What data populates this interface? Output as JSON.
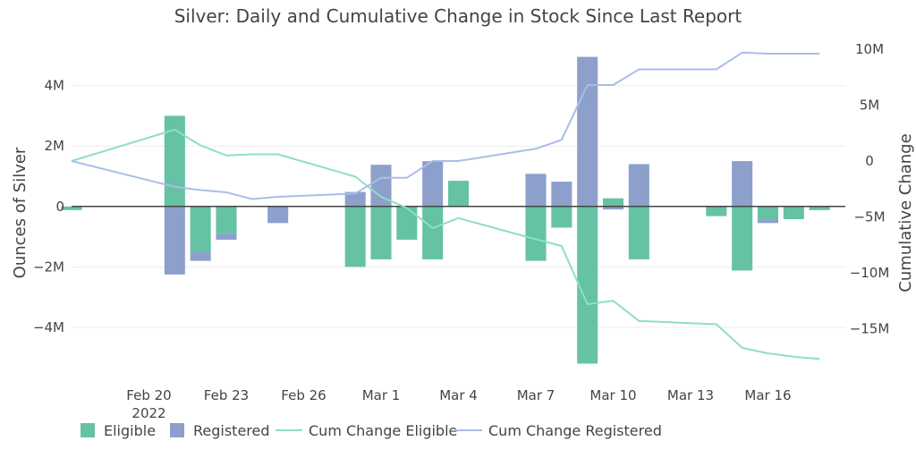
{
  "chart_data": {
    "type": "bar",
    "title": "Silver: Daily and Cumulative Change in Stock Since Last Report",
    "ylabel": "Ounces of Silver",
    "y2label": "Cumulative Change",
    "ylim": [
      -5.6,
      5.5
    ],
    "y2lim": [
      -19.2,
      10.8
    ],
    "y_unit": "M",
    "yticks": [
      {
        "value": 4,
        "label": "4M"
      },
      {
        "value": 2,
        "label": "2M"
      },
      {
        "value": 0,
        "label": "0"
      },
      {
        "value": -2,
        "label": "−2M"
      },
      {
        "value": -4,
        "label": "−4M"
      }
    ],
    "y2ticks": [
      {
        "value": 10,
        "label": "10M"
      },
      {
        "value": 5,
        "label": "5M"
      },
      {
        "value": 0,
        "label": "0"
      },
      {
        "value": -5,
        "label": "−5M"
      },
      {
        "value": -10,
        "label": "−10M"
      },
      {
        "value": -15,
        "label": "−15M"
      }
    ],
    "xlim": [
      "2022-02-17",
      "2022-03-19"
    ],
    "xticks": [
      {
        "date": "2022-02-20",
        "label": "Feb 20",
        "year": "2022"
      },
      {
        "date": "2022-02-23",
        "label": "Feb 23"
      },
      {
        "date": "2022-02-26",
        "label": "Feb 26"
      },
      {
        "date": "2022-03-01",
        "label": "Mar 1"
      },
      {
        "date": "2022-03-04",
        "label": "Mar 4"
      },
      {
        "date": "2022-03-07",
        "label": "Mar 7"
      },
      {
        "date": "2022-03-10",
        "label": "Mar 10"
      },
      {
        "date": "2022-03-13",
        "label": "Mar 13"
      },
      {
        "date": "2022-03-16",
        "label": "Mar 16"
      }
    ],
    "barmode": "relative",
    "dates": [
      "2022-02-17",
      "2022-02-21",
      "2022-02-22",
      "2022-02-23",
      "2022-02-24",
      "2022-02-25",
      "2022-02-28",
      "2022-03-01",
      "2022-03-02",
      "2022-03-03",
      "2022-03-04",
      "2022-03-07",
      "2022-03-08",
      "2022-03-09",
      "2022-03-10",
      "2022-03-11",
      "2022-03-14",
      "2022-03-15",
      "2022-03-16",
      "2022-03-17",
      "2022-03-18"
    ],
    "series": [
      {
        "name": "Eligible",
        "kind": "bar",
        "axis": "y",
        "color": "#66c2a5",
        "values": [
          -0.12,
          3.0,
          -1.5,
          -0.9,
          0,
          0,
          -2.0,
          -1.75,
          -1.1,
          -1.75,
          0.85,
          -1.8,
          -0.7,
          -5.2,
          0.27,
          -1.75,
          -0.32,
          -2.12,
          -0.45,
          -0.42,
          -0.12
        ]
      },
      {
        "name": "Registered",
        "kind": "bar",
        "axis": "y",
        "color": "#8da0cb",
        "values": [
          0,
          -2.25,
          -0.3,
          -0.2,
          0,
          -0.55,
          0.48,
          1.38,
          0,
          1.5,
          0,
          1.08,
          0.82,
          4.95,
          -0.1,
          1.4,
          0,
          1.5,
          -0.1,
          0,
          0
        ]
      },
      {
        "name": "Cum Change Eligible",
        "kind": "line",
        "axis": "y2",
        "color": "#8de0c0",
        "values": [
          0,
          2.8,
          1.4,
          0.5,
          0.6,
          0.6,
          -1.4,
          -3.2,
          -4.2,
          -6.0,
          -5.1,
          -7.0,
          -7.6,
          -12.8,
          -12.5,
          -14.3,
          -14.6,
          -16.7,
          -17.2,
          -17.5,
          -17.7
        ]
      },
      {
        "name": "Cum Change Registered",
        "kind": "line",
        "axis": "y2",
        "color": "#aabde9",
        "values": [
          0,
          -2.3,
          -2.6,
          -2.8,
          -3.4,
          -3.2,
          -2.9,
          -1.5,
          -1.5,
          0,
          0,
          1.1,
          1.9,
          6.8,
          6.8,
          8.2,
          8.2,
          9.7,
          9.6,
          9.6,
          9.6
        ]
      }
    ],
    "legend": {
      "position": "bottom-left",
      "orientation": "horizontal"
    }
  }
}
